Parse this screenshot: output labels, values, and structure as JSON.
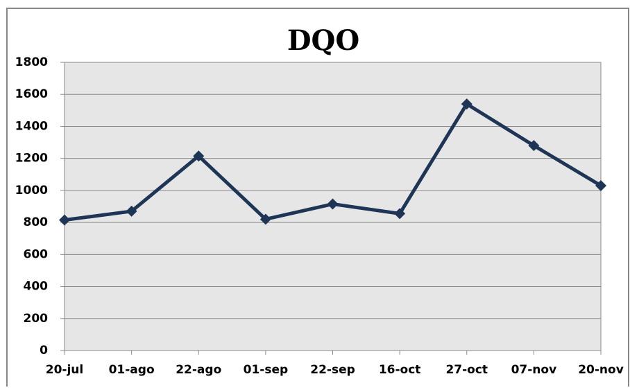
{
  "chart_data": {
    "type": "line",
    "title": "DQO",
    "categories": [
      "20-jul",
      "01-ago",
      "22-ago",
      "01-sep",
      "22-sep",
      "16-oct",
      "27-oct",
      "07-nov",
      "20-nov"
    ],
    "series": [
      {
        "name": "DQO",
        "color": "#1f3556",
        "values": [
          815,
          870,
          1215,
          820,
          915,
          855,
          1540,
          1280,
          1030
        ]
      }
    ],
    "ylim": [
      0,
      1800
    ],
    "yticks": [
      0,
      200,
      400,
      600,
      800,
      1000,
      1200,
      1400,
      1600,
      1800
    ],
    "grid": true
  }
}
